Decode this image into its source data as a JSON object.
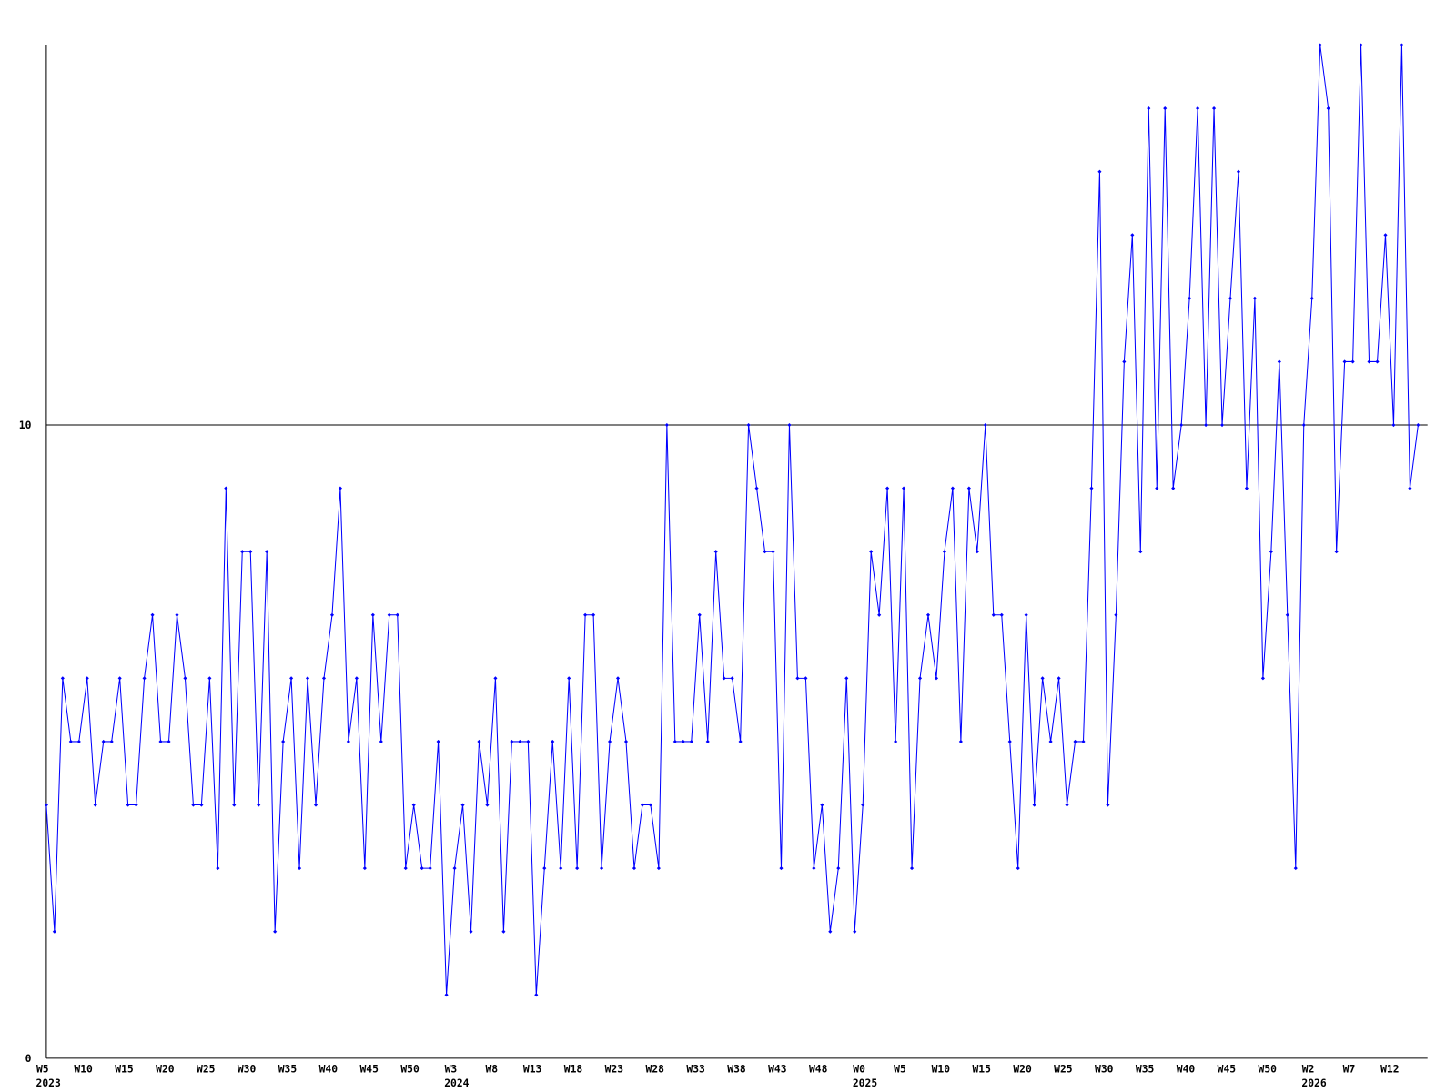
{
  "chart_data": {
    "type": "line",
    "categories": [
      "W5",
      null,
      null,
      null,
      null,
      "W10",
      null,
      null,
      null,
      null,
      "W15",
      null,
      null,
      null,
      null,
      "W20",
      null,
      null,
      null,
      null,
      "W25",
      null,
      null,
      null,
      null,
      "W30",
      null,
      null,
      null,
      null,
      "W35",
      null,
      null,
      null,
      null,
      "W40",
      null,
      null,
      null,
      null,
      "W45",
      null,
      null,
      null,
      null,
      "W50",
      null,
      null,
      null,
      null,
      "W3",
      null,
      null,
      null,
      null,
      "W8",
      null,
      null,
      null,
      null,
      "W13",
      null,
      null,
      null,
      null,
      "W18",
      null,
      null,
      null,
      null,
      "W23",
      null,
      null,
      null,
      null,
      "W28",
      null,
      null,
      null,
      null,
      "W33",
      null,
      null,
      null,
      null,
      "W38",
      null,
      null,
      null,
      null,
      "W43",
      null,
      null,
      null,
      null,
      "W48",
      null,
      null,
      null,
      null,
      "W0",
      null,
      null,
      null,
      null,
      "W5",
      null,
      null,
      null,
      null,
      "W10",
      null,
      null,
      null,
      null,
      "W15",
      null,
      null,
      null,
      null,
      "W20",
      null,
      null,
      null,
      null,
      "W25",
      null,
      null,
      null,
      null,
      "W30",
      null,
      null,
      null,
      null,
      "W35",
      null,
      null,
      null,
      null,
      "W40",
      null,
      null,
      null,
      null,
      "W45",
      null,
      null,
      null,
      null,
      "W50",
      null,
      null,
      null,
      null,
      "W2",
      null,
      null,
      null,
      null,
      "W7",
      null,
      null,
      null,
      null,
      "W12",
      null,
      null,
      null
    ],
    "years": [
      "2023",
      null,
      null,
      null,
      null,
      null,
      null,
      null,
      null,
      null,
      null,
      null,
      null,
      null,
      null,
      null,
      null,
      null,
      null,
      null,
      null,
      null,
      null,
      null,
      null,
      null,
      null,
      null,
      null,
      null,
      null,
      null,
      null,
      null,
      null,
      null,
      null,
      null,
      null,
      null,
      null,
      null,
      null,
      null,
      null,
      null,
      null,
      null,
      null,
      null,
      "2024",
      null,
      null,
      null,
      null,
      null,
      null,
      null,
      null,
      null,
      null,
      null,
      null,
      null,
      null,
      null,
      null,
      null,
      null,
      null,
      null,
      null,
      null,
      null,
      null,
      null,
      null,
      null,
      null,
      null,
      null,
      null,
      null,
      null,
      null,
      null,
      null,
      null,
      null,
      null,
      null,
      null,
      null,
      null,
      null,
      null,
      null,
      null,
      null,
      null,
      "2025",
      null,
      null,
      null,
      null,
      null,
      null,
      null,
      null,
      null,
      null,
      null,
      null,
      null,
      null,
      null,
      null,
      null,
      null,
      null,
      null,
      null,
      null,
      null,
      null,
      null,
      null,
      null,
      null,
      null,
      null,
      null,
      null,
      null,
      null,
      null,
      null,
      null,
      null,
      null,
      null,
      null,
      null,
      null,
      null,
      null,
      null,
      null,
      null,
      null,
      null,
      null,
      null,
      null,
      null,
      "2026",
      null,
      null,
      null,
      null,
      null,
      null,
      null,
      null,
      null,
      null,
      null,
      null,
      null
    ],
    "values": [
      4,
      2,
      6,
      5,
      5,
      6,
      4,
      5,
      5,
      6,
      4,
      4,
      6,
      7,
      5,
      5,
      7,
      6,
      4,
      4,
      6,
      3,
      9,
      4,
      8,
      8,
      4,
      8,
      2,
      5,
      6,
      3,
      6,
      4,
      6,
      7,
      9,
      5,
      6,
      3,
      7,
      5,
      7,
      7,
      3,
      4,
      3,
      3,
      5,
      1,
      3,
      4,
      2,
      5,
      4,
      6,
      2,
      5,
      5,
      5,
      1,
      3,
      5,
      3,
      6,
      3,
      7,
      7,
      3,
      5,
      6,
      5,
      3,
      4,
      4,
      3,
      10,
      5,
      5,
      5,
      7,
      5,
      8,
      6,
      6,
      5,
      10,
      9,
      8,
      8,
      3,
      10,
      6,
      6,
      3,
      4,
      2,
      3,
      6,
      2,
      4,
      8,
      7,
      9,
      5,
      9,
      3,
      6,
      7,
      6,
      8,
      9,
      5,
      9,
      8,
      10,
      7,
      7,
      5,
      3,
      7,
      4,
      6,
      5,
      6,
      4,
      5,
      5,
      9,
      14,
      4,
      7,
      11,
      13,
      8,
      15,
      9,
      15,
      9,
      10,
      12,
      15,
      10,
      15,
      10,
      12,
      14,
      9,
      12,
      6,
      8,
      11,
      7,
      3,
      10,
      12,
      16,
      15,
      8,
      11,
      11,
      16,
      11,
      11,
      13,
      10,
      16,
      9,
      10
    ],
    "color": "#0000ff",
    "ylim": [
      0,
      16
    ],
    "yticks": [
      0,
      10
    ],
    "grid": true
  }
}
